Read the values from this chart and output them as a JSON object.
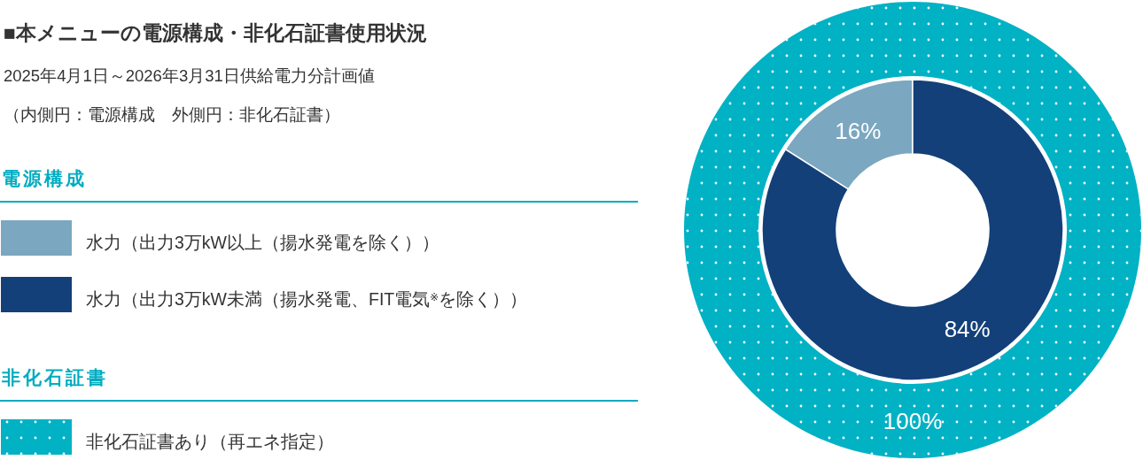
{
  "chart_data": {
    "type": "donut",
    "title": "■本メニューの電源構成・非化石証書使用状況",
    "subtitle": "2025年4月1日～2026年3月31日供給電力分計画値",
    "annotations": [
      "（内側円：電源構成　外側円：非化石証書）",
      "電源構成",
      "非化石証書"
    ],
    "legend": "left",
    "categories": [
      "水力（出力3万kW以上（揚水発電を除く））",
      "水力（出力3万kW未満（揚水発電、FIT電気$^{※}$を除く））",
      "非化石証書あり（再エネ指定）"
    ],
    "series": [
      {
        "values": [
          16,
          84,
          null
        ],
        "colors": [
          "#7ba7c0",
          "#134079",
          null
        ],
        "value_labels": [
          "16%",
          "84%",
          null
        ]
      },
      {
        "values": [
          null,
          null,
          100
        ],
        "colors": [
          null,
          null,
          "#00b2c4"
        ],
        "value_labels": [
          null,
          null,
          "100%"
        ]
      }
    ]
  }
}
